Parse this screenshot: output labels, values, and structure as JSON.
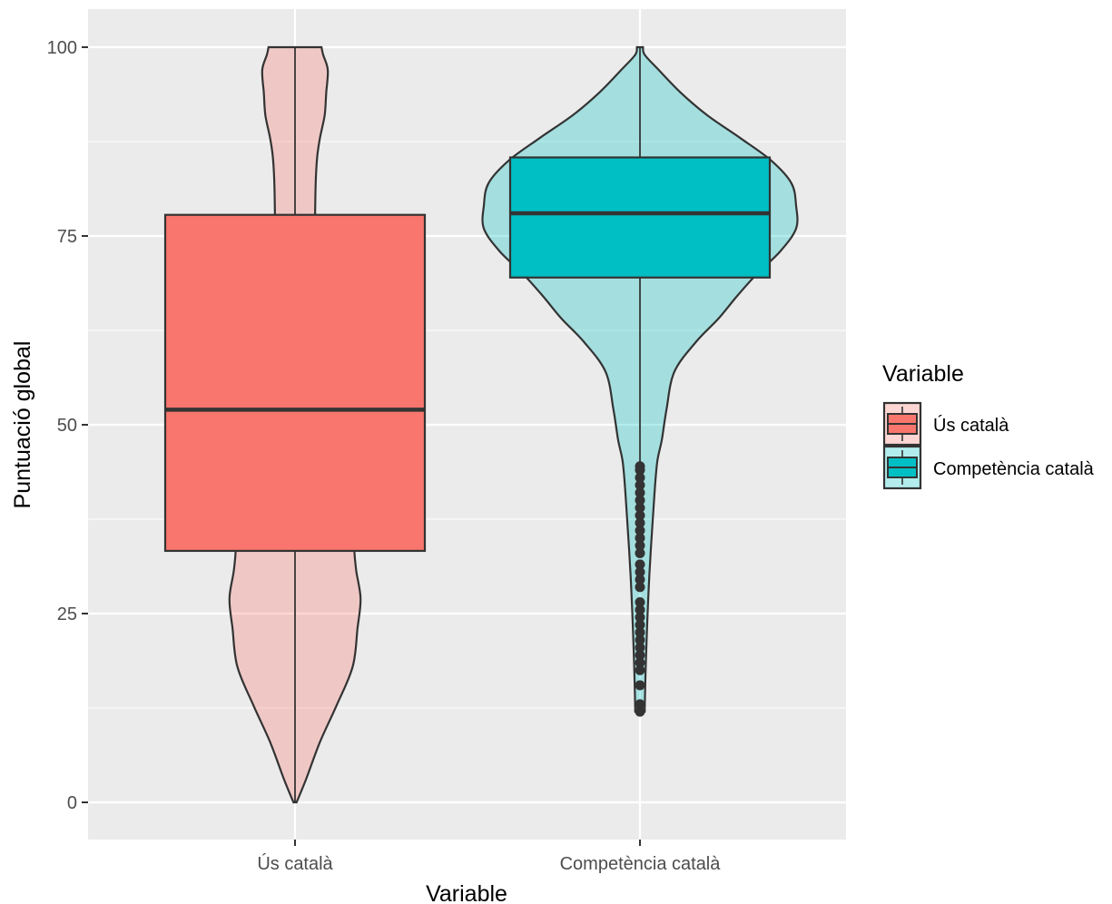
{
  "chart_data": {
    "type": "violin-boxplot",
    "xlabel": "Variable",
    "ylabel": "Puntuació global",
    "ylim": [
      -5,
      105
    ],
    "y_ticks": [
      0,
      25,
      50,
      75,
      100
    ],
    "y_tick_labels": [
      "0",
      "25",
      "50",
      "75",
      "100"
    ],
    "categories": [
      "Ús català",
      "Competència català"
    ],
    "legend": {
      "title": "Variable",
      "placement": "right",
      "entries": [
        "Ús català",
        "Competència català"
      ]
    },
    "grid": true,
    "colors": {
      "panel": "#ebebeb",
      "grid": "#ffffff",
      "outline": "#333333",
      "series": [
        "#f8766d",
        "#00bfc4"
      ]
    },
    "series": [
      {
        "category": "Ús català",
        "box": {
          "q1": 33.3,
          "median": 52,
          "q3": 77.8
        },
        "whisker": [
          0,
          100
        ],
        "violin_profile": [
          [
            0,
            0.01
          ],
          [
            3,
            0.07
          ],
          [
            8,
            0.16
          ],
          [
            13,
            0.27
          ],
          [
            18,
            0.37
          ],
          [
            23,
            0.4
          ],
          [
            27,
            0.42
          ],
          [
            31,
            0.39
          ],
          [
            35,
            0.38
          ],
          [
            40,
            0.42
          ],
          [
            45,
            0.45
          ],
          [
            50,
            0.42
          ],
          [
            55,
            0.34
          ],
          [
            60,
            0.25
          ],
          [
            65,
            0.18
          ],
          [
            70,
            0.15
          ],
          [
            75,
            0.13
          ],
          [
            80,
            0.13
          ],
          [
            85,
            0.14
          ],
          [
            88,
            0.16
          ],
          [
            91,
            0.19
          ],
          [
            94,
            0.2
          ],
          [
            97,
            0.21
          ],
          [
            99,
            0.18
          ],
          [
            100,
            0.17
          ]
        ],
        "outliers": []
      },
      {
        "category": "Competència català",
        "box": {
          "q1": 69.5,
          "median": 78,
          "q3": 85.4
        },
        "whisker": [
          45,
          100
        ],
        "violin_profile": [
          [
            12,
            0.03
          ],
          [
            20,
            0.04
          ],
          [
            30,
            0.06
          ],
          [
            40,
            0.09
          ],
          [
            45,
            0.11
          ],
          [
            48,
            0.14
          ],
          [
            52,
            0.17
          ],
          [
            57,
            0.22
          ],
          [
            61,
            0.36
          ],
          [
            64,
            0.5
          ],
          [
            67,
            0.62
          ],
          [
            70,
            0.75
          ],
          [
            73,
            0.9
          ],
          [
            76,
            1.0
          ],
          [
            79,
            1.0
          ],
          [
            82,
            0.97
          ],
          [
            85,
            0.84
          ],
          [
            88,
            0.64
          ],
          [
            91,
            0.43
          ],
          [
            94,
            0.26
          ],
          [
            97,
            0.12
          ],
          [
            99,
            0.03
          ],
          [
            100,
            0.02
          ]
        ],
        "outliers": [
          12,
          13,
          15.5,
          17.5,
          18.5,
          19.5,
          20.5,
          21.5,
          22.5,
          23.5,
          24.5,
          25.5,
          26.5,
          28.5,
          29.5,
          30.5,
          31.5,
          33,
          34,
          35,
          36,
          37,
          38,
          39,
          40,
          41,
          42,
          43,
          44,
          44.5
        ]
      }
    ]
  }
}
